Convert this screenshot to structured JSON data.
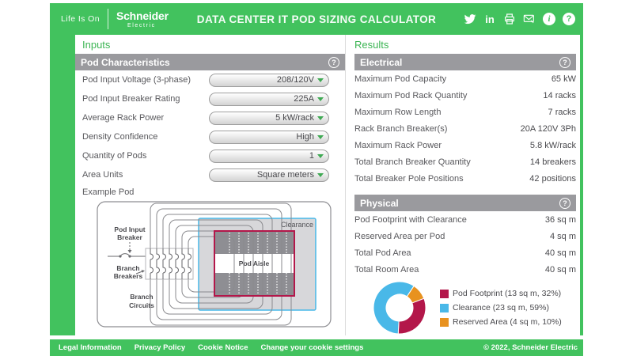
{
  "header": {
    "life_is_on": "Life Is On",
    "brand_name": "Schneider",
    "brand_sub": "Electric",
    "title": "DATA CENTER IT POD SIZING CALCULATOR",
    "icons": [
      "twitter",
      "linkedin",
      "print",
      "email",
      "info",
      "help"
    ]
  },
  "inputs": {
    "heading": "Inputs",
    "section": "Pod Characteristics",
    "fields": [
      {
        "label": "Pod Input Voltage (3-phase)",
        "value": "208/120V"
      },
      {
        "label": "Pod Input Breaker Rating",
        "value": "225A"
      },
      {
        "label": "Average Rack Power",
        "value": "5 kW/rack"
      },
      {
        "label": "Density Confidence",
        "value": "High"
      },
      {
        "label": "Quantity of Pods",
        "value": "1"
      },
      {
        "label": "Area Units",
        "value": "Square meters"
      }
    ],
    "example_pod": {
      "label": "Example Pod",
      "pod_input_breaker_1": "Pod Input",
      "pod_input_breaker_2": "Breaker",
      "branch_breakers_1": "Branch",
      "branch_breakers_2": "Breakers",
      "branch_circuits_1": "Branch",
      "branch_circuits_2": "Circuits",
      "clearance": "Clearance",
      "pod_aisle": "Pod Aisle"
    }
  },
  "results": {
    "heading": "Results",
    "electrical": {
      "section": "Electrical",
      "rows": [
        {
          "label": "Maximum Pod Capacity",
          "value": "65 kW"
        },
        {
          "label": "Maximum Pod Rack Quantity",
          "value": "14 racks"
        },
        {
          "label": "Maximum Row Length",
          "value": "7 racks"
        },
        {
          "label": "Rack Branch Breaker(s)",
          "value": "20A 120V 3Ph"
        },
        {
          "label": "Maximum Rack Power",
          "value": "5.8 kW/rack"
        },
        {
          "label": "Total Branch Breaker Quantity",
          "value": "14 breakers"
        },
        {
          "label": "Total Breaker Pole Positions",
          "value": "42 positions"
        }
      ]
    },
    "physical": {
      "section": "Physical",
      "rows": [
        {
          "label": "Pod Footprint with Clearance",
          "value": "36 sq m"
        },
        {
          "label": "Reserved Area per Pod",
          "value": "4 sq m"
        },
        {
          "label": "Total Pod Area",
          "value": "40 sq m"
        },
        {
          "label": "Total Room Area",
          "value": "40 sq m"
        }
      ]
    }
  },
  "chart_data": {
    "type": "pie",
    "donut": true,
    "start_angle_deg": 69,
    "legend_position": "right",
    "slices": [
      {
        "label": "Pod Footprint",
        "area_sq_m": 13,
        "percent": 32,
        "color": "#b3174a",
        "legend": "Pod Footprint (13 sq m, 32%)"
      },
      {
        "label": "Clearance",
        "area_sq_m": 23,
        "percent": 59,
        "color": "#49b8e8",
        "legend": "Clearance (23 sq m, 59%)"
      },
      {
        "label": "Reserved Area",
        "area_sq_m": 4,
        "percent": 10,
        "color": "#e8921f",
        "legend": "Reserved Area (4 sq m, 10%)"
      }
    ]
  },
  "footer": {
    "links": [
      "Legal Information",
      "Privacy Policy",
      "Cookie Notice",
      "Change your cookie settings"
    ],
    "copyright": "© 2022, Schneider Electric"
  },
  "colors": {
    "brand_green": "#42c25e",
    "section_gray": "#9a9a9e",
    "pod_red": "#b3174a",
    "clearance_blue": "#49b8e8",
    "reserved_orange": "#e8921f"
  }
}
